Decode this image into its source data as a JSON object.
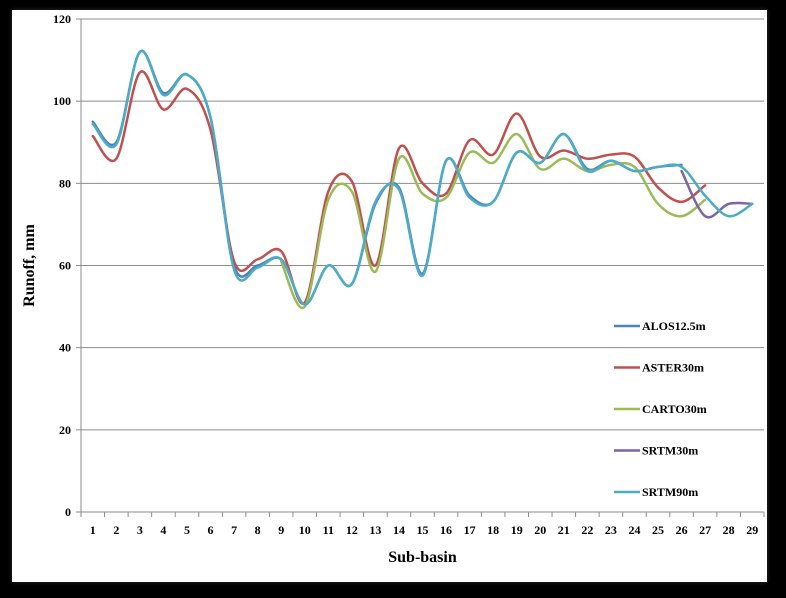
{
  "chart_data": {
    "type": "line",
    "title": "",
    "xlabel": "Sub-basin",
    "ylabel": "Runoff, mm",
    "ylim": [
      0,
      120
    ],
    "yticks": [
      0,
      20,
      40,
      60,
      80,
      100,
      120
    ],
    "grid": true,
    "legend_position": "right",
    "categories": [
      "1",
      "2",
      "3",
      "4",
      "5",
      "6",
      "7",
      "8",
      "9",
      "10",
      "11",
      "12",
      "13",
      "14",
      "15",
      "16",
      "17",
      "18",
      "19",
      "20",
      "21",
      "22",
      "23",
      "24",
      "25",
      "26",
      "27",
      "28",
      "29"
    ],
    "series": [
      {
        "name": "ALOS12.5m",
        "color": "#4f81bd",
        "values": [
          95,
          90,
          112,
          102,
          106.5,
          96,
          60,
          60,
          61.5,
          50.5,
          60,
          55.5,
          75,
          79,
          58,
          85.5,
          77,
          75.5,
          87.5,
          85,
          92,
          83.5,
          85.5,
          83,
          84,
          84.5,
          null,
          null,
          null
        ]
      },
      {
        "name": "ASTER30m",
        "color": "#c0504d",
        "values": [
          91.5,
          86,
          107,
          98,
          103,
          93,
          61,
          61.5,
          63.5,
          51,
          78,
          80.5,
          60,
          88.5,
          80,
          77.5,
          90.5,
          87,
          97,
          86.5,
          88,
          86,
          87,
          86.5,
          79,
          75.5,
          79.5,
          null,
          null
        ]
      },
      {
        "name": "CARTO30m",
        "color": "#9bbb59",
        "values": [
          null,
          null,
          null,
          null,
          null,
          null,
          null,
          null,
          61,
          50,
          76,
          78,
          58.5,
          86,
          77.5,
          76.5,
          87.5,
          85,
          92,
          83.5,
          86,
          83,
          84.5,
          84,
          75,
          72,
          76,
          null,
          null
        ]
      },
      {
        "name": "SRTM30m",
        "color": "#8064a2",
        "values": [
          null,
          null,
          null,
          null,
          null,
          null,
          null,
          null,
          null,
          null,
          null,
          null,
          null,
          null,
          null,
          null,
          null,
          null,
          null,
          null,
          null,
          null,
          null,
          null,
          null,
          83,
          72,
          75,
          75
        ]
      },
      {
        "name": "SRTM90m",
        "color": "#4bacc6",
        "values": [
          94.5,
          89.5,
          112,
          101.5,
          106.5,
          96,
          59,
          59.5,
          61.5,
          50.5,
          60,
          55.5,
          75.5,
          78.5,
          57.5,
          85.5,
          76.5,
          75.5,
          87.5,
          85,
          92,
          83,
          85.5,
          83,
          84,
          84,
          77,
          72,
          75
        ]
      }
    ]
  }
}
